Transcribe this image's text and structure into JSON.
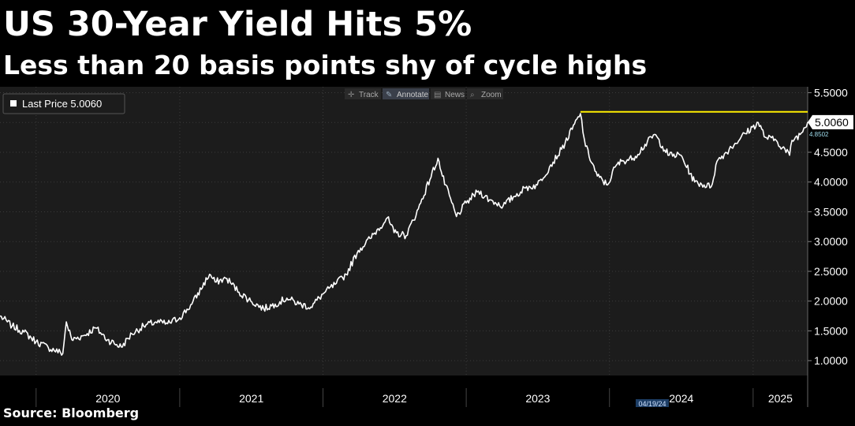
{
  "header": {
    "title": "US 30-Year Yield Hits 5%",
    "subtitle": "Less than 20 basis points shy of cycle highs"
  },
  "footer": {
    "source": "Source: Bloomberg"
  },
  "toolbar": {
    "items": [
      {
        "label": "Track",
        "icon": "crosshair-icon"
      },
      {
        "label": "Annotate",
        "icon": "pencil-icon"
      },
      {
        "label": "News",
        "icon": "news-icon"
      },
      {
        "label": "Zoom",
        "icon": "magnifier-icon"
      }
    ]
  },
  "legend": {
    "label": "Last Price 5.0060"
  },
  "colors": {
    "line": "#ffffff",
    "cycle_high": "#ffee00",
    "background": "#1c1c1c",
    "grid": "#3a3a3a",
    "price_tag": "#ffffff",
    "sub_tag": "#9fdcec"
  },
  "chart_data": {
    "type": "line",
    "title": "US 30-Year Yield Hits 5%",
    "subtitle": "Less than 20 basis points shy of cycle highs",
    "ylim": [
      0.75,
      5.6
    ],
    "y_ticks": [
      "5.5000",
      "5.0000",
      "4.5000",
      "4.0000",
      "3.5000",
      "3.0000",
      "2.5000",
      "2.0000",
      "1.5000",
      "1.0000"
    ],
    "y_tick_values": [
      5.5,
      5.0,
      4.5,
      4.0,
      3.5,
      3.0,
      2.5,
      2.0,
      1.5,
      1.0
    ],
    "x_ticks": [
      "2020",
      "2021",
      "2022",
      "2023",
      "2024",
      "2025"
    ],
    "x_tick_values": [
      "2020-01-01",
      "2021-01-01",
      "2022-01-01",
      "2023-01-01",
      "2024-01-01",
      "2025-01-01"
    ],
    "xlim": [
      "2019-10-01",
      "2025-05-20"
    ],
    "grid": true,
    "legend_position": "top-left",
    "last_price_label": "5.0060",
    "last_price_value": 5.006,
    "secondary_label": "4.8502",
    "date_marker_label": "04/19/24",
    "date_marker_value": "2024-04-19",
    "cycle_high": {
      "value": 5.18,
      "start": "2023-10-19",
      "end": "2025-05-20"
    },
    "series": [
      {
        "x": [
          "2019-10-01",
          "2019-11-01",
          "2019-12-01",
          "2020-01-01",
          "2020-02-01",
          "2020-03-09",
          "2020-03-18",
          "2020-04-01",
          "2020-05-01",
          "2020-06-01",
          "2020-07-01",
          "2020-08-05",
          "2020-09-01",
          "2020-10-01",
          "2020-11-01",
          "2020-12-01",
          "2021-01-01",
          "2021-02-01",
          "2021-03-18",
          "2021-04-01",
          "2021-05-01",
          "2021-06-01",
          "2021-07-01",
          "2021-08-03",
          "2021-09-01",
          "2021-10-01",
          "2021-11-01",
          "2021-12-01",
          "2022-01-01",
          "2022-02-01",
          "2022-03-01",
          "2022-04-01",
          "2022-05-01",
          "2022-06-14",
          "2022-07-01",
          "2022-08-01",
          "2022-09-01",
          "2022-10-21",
          "2022-11-01",
          "2022-12-07",
          "2023-01-01",
          "2023-02-01",
          "2023-03-01",
          "2023-04-05",
          "2023-05-01",
          "2023-06-01",
          "2023-07-01",
          "2023-08-01",
          "2023-09-01",
          "2023-10-19",
          "2023-11-01",
          "2023-12-01",
          "2023-12-27",
          "2024-01-15",
          "2024-02-01",
          "2024-03-01",
          "2024-04-25",
          "2024-05-15",
          "2024-06-01",
          "2024-07-01",
          "2024-08-05",
          "2024-09-16",
          "2024-10-01",
          "2024-11-01",
          "2024-12-01",
          "2025-01-14",
          "2025-02-01",
          "2025-03-01",
          "2025-04-04",
          "2025-04-10",
          "2025-05-01",
          "2025-05-20"
        ],
        "values": [
          1.75,
          1.58,
          1.48,
          1.32,
          1.22,
          1.12,
          1.65,
          1.35,
          1.42,
          1.55,
          1.35,
          1.23,
          1.45,
          1.58,
          1.65,
          1.62,
          1.72,
          1.95,
          2.45,
          2.32,
          2.38,
          2.15,
          2.0,
          1.87,
          1.95,
          2.05,
          1.95,
          1.9,
          2.12,
          2.28,
          2.45,
          2.85,
          3.05,
          3.4,
          3.15,
          3.1,
          3.55,
          4.4,
          4.1,
          3.42,
          3.65,
          3.85,
          3.7,
          3.6,
          3.75,
          3.9,
          3.95,
          4.25,
          4.55,
          5.15,
          4.6,
          4.1,
          3.95,
          4.25,
          4.35,
          4.4,
          4.8,
          4.6,
          4.45,
          4.45,
          4.0,
          3.92,
          4.35,
          4.55,
          4.75,
          5.0,
          4.75,
          4.7,
          4.45,
          4.7,
          4.8,
          5.006
        ]
      }
    ]
  }
}
